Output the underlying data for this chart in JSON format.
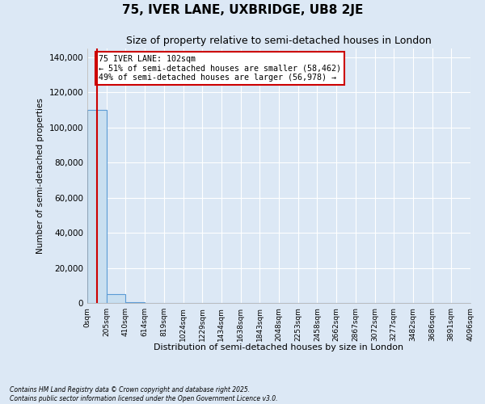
{
  "title": "75, IVER LANE, UXBRIDGE, UB8 2JE",
  "subtitle": "Size of property relative to semi-detached houses in London",
  "xlabel": "Distribution of semi-detached houses by size in London",
  "ylabel": "Number of semi-detached properties",
  "property_size": 102,
  "annotation_text": "75 IVER LANE: 102sqm\n← 51% of semi-detached houses are smaller (58,462)\n49% of semi-detached houses are larger (56,978) →",
  "footnote": "Contains HM Land Registry data © Crown copyright and database right 2025.\nContains public sector information licensed under the Open Government Licence v3.0.",
  "bin_edges": [
    0,
    205,
    410,
    614,
    819,
    1024,
    1229,
    1434,
    1638,
    1843,
    2048,
    2253,
    2458,
    2662,
    2867,
    3072,
    3277,
    3482,
    3686,
    3891,
    4096
  ],
  "bar_heights": [
    110000,
    5000,
    500,
    200,
    100,
    60,
    40,
    30,
    20,
    15,
    10,
    8,
    6,
    5,
    4,
    3,
    3,
    2,
    2,
    2
  ],
  "bar_color": "#c9dff0",
  "bar_edge_color": "#5b9bd5",
  "vline_color": "#cc0000",
  "vline_x": 102,
  "ylim": [
    0,
    145000
  ],
  "yticks": [
    0,
    20000,
    40000,
    60000,
    80000,
    100000,
    120000,
    140000
  ],
  "background_color": "#dce8f5",
  "grid_color": "#ffffff",
  "annotation_box_color": "#cc0000",
  "title_fontsize": 11,
  "subtitle_fontsize": 9
}
